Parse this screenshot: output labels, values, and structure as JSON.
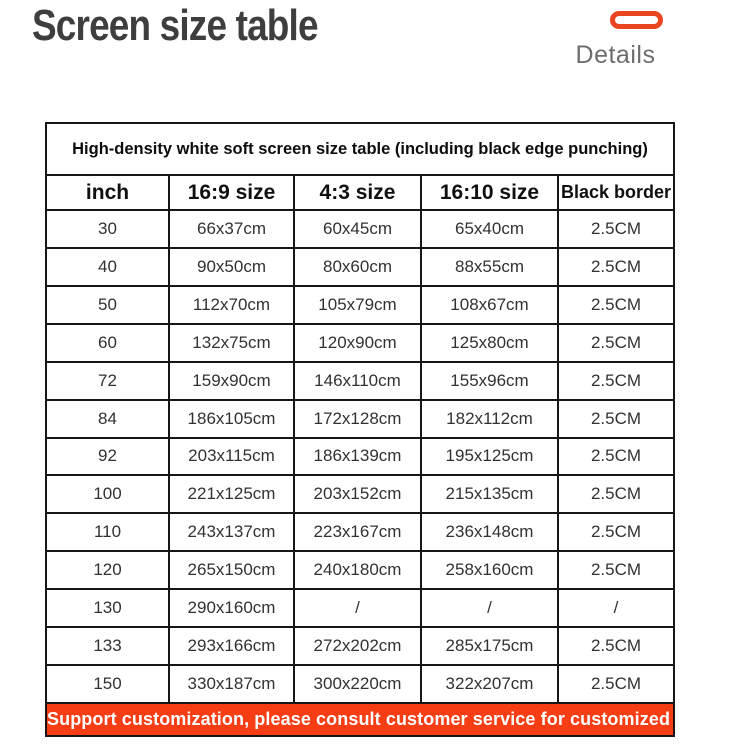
{
  "header": {
    "page_title": "Screen size table",
    "details_label": "Details"
  },
  "colors": {
    "accent_banner": "#f73d13",
    "accent_pill": "#ea4420",
    "title_text": "#3e3e3e",
    "details_text": "#6d6d6d",
    "table_border": "#161616"
  },
  "chart_data": {
    "type": "table",
    "title": "High-density white soft screen size table (including black edge punching)",
    "columns": [
      "inch",
      "16:9 size",
      "4:3 size",
      "16:10 size",
      "Black border"
    ],
    "rows": [
      [
        "30",
        "66x37cm",
        "60x45cm",
        "65x40cm",
        "2.5CM"
      ],
      [
        "40",
        "90x50cm",
        "80x60cm",
        "88x55cm",
        "2.5CM"
      ],
      [
        "50",
        "112x70cm",
        "105x79cm",
        "108x67cm",
        "2.5CM"
      ],
      [
        "60",
        "132x75cm",
        "120x90cm",
        "125x80cm",
        "2.5CM"
      ],
      [
        "72",
        "159x90cm",
        "146x110cm",
        "155x96cm",
        "2.5CM"
      ],
      [
        "84",
        "186x105cm",
        "172x128cm",
        "182x112cm",
        "2.5CM"
      ],
      [
        "92",
        "203x115cm",
        "186x139cm",
        "195x125cm",
        "2.5CM"
      ],
      [
        "100",
        "221x125cm",
        "203x152cm",
        "215x135cm",
        "2.5CM"
      ],
      [
        "110",
        "243x137cm",
        "223x167cm",
        "236x148cm",
        "2.5CM"
      ],
      [
        "120",
        "265x150cm",
        "240x180cm",
        "258x160cm",
        "2.5CM"
      ],
      [
        "130",
        "290x160cm",
        "/",
        "/",
        "/"
      ],
      [
        "133",
        "293x166cm",
        "272x202cm",
        "285x175cm",
        "2.5CM"
      ],
      [
        "150",
        "330x187cm",
        "300x220cm",
        "322x207cm",
        "2.5CM"
      ]
    ],
    "footer_note": "Support customization, please consult customer service for customized size"
  }
}
